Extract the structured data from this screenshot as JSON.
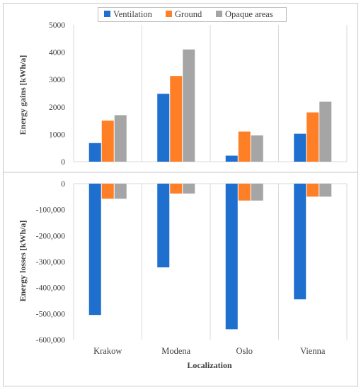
{
  "chart_data": [
    {
      "type": "bar",
      "categories": [
        "Krakow",
        "Modena",
        "Oslo",
        "Vienna"
      ],
      "series": [
        {
          "name": "Ventilation",
          "values": [
            680,
            2480,
            220,
            1020
          ]
        },
        {
          "name": "Ground",
          "values": [
            1500,
            3130,
            1100,
            1800
          ]
        },
        {
          "name": "Opaque areas",
          "values": [
            1700,
            4100,
            960,
            2190
          ]
        }
      ],
      "xlabel": "",
      "ylabel": "Energy gains [kWh/a]",
      "ylim": [
        0,
        5000
      ],
      "yticks": [
        0,
        1000,
        2000,
        3000,
        4000,
        5000
      ],
      "ytick_labels": [
        "0",
        "1000",
        "2000",
        "3000",
        "4000",
        "5000"
      ],
      "grid": "vertical category separators"
    },
    {
      "type": "bar",
      "categories": [
        "Krakow",
        "Modena",
        "Oslo",
        "Vienna"
      ],
      "series": [
        {
          "name": "Ventilation",
          "values": [
            -505000,
            -322000,
            -560000,
            -445000
          ]
        },
        {
          "name": "Ground",
          "values": [
            -58000,
            -38000,
            -65000,
            -50000
          ]
        },
        {
          "name": "Opaque areas",
          "values": [
            -58000,
            -38000,
            -65000,
            -50000
          ]
        }
      ],
      "xlabel": "Localization",
      "ylabel": "Energy losses [kWh/a]",
      "ylim": [
        -600000,
        0
      ],
      "yticks": [
        0,
        -100000,
        -200000,
        -300000,
        -400000,
        -500000,
        -600000
      ],
      "ytick_labels": [
        "0",
        "-100,000",
        "-200,000",
        "-300,000",
        "-400,000",
        "-500,000",
        "-600,000"
      ],
      "grid": "vertical category separators"
    }
  ],
  "legend": {
    "placement": "top-center",
    "items": [
      {
        "label": "Ventilation",
        "color": "#1F6FCE"
      },
      {
        "label": "Ground",
        "color": "#FF7F27"
      },
      {
        "label": "Opaque areas",
        "color": "#A5A5A5"
      }
    ]
  },
  "colors": {
    "ventilation": "#1F6FCE",
    "ground": "#FF7F27",
    "opaque": "#A5A5A5",
    "grid": "#D9D9D9",
    "text": "#404040"
  }
}
